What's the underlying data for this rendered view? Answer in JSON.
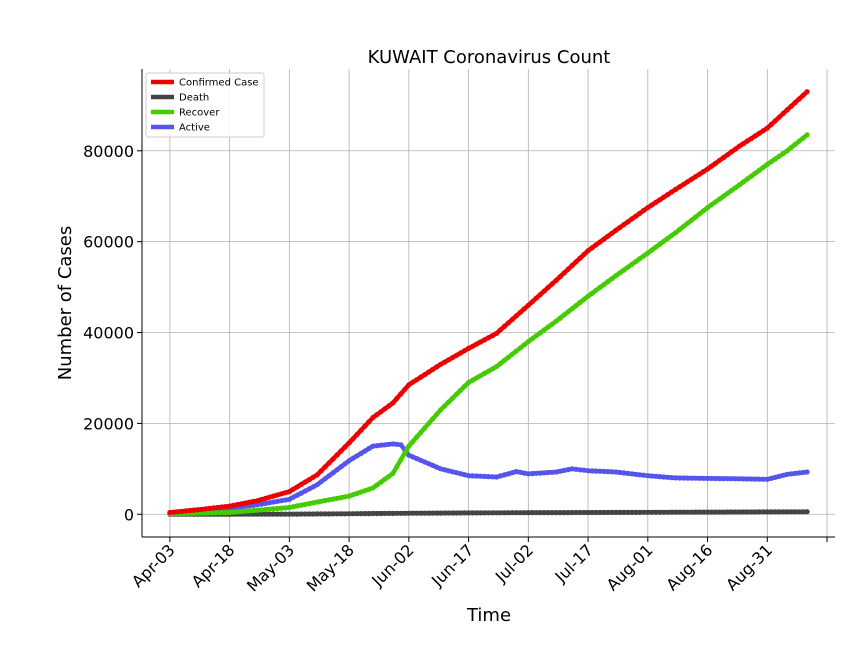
{
  "chart_data": {
    "type": "line",
    "title": "KUWAIT Coronavirus Count",
    "xlabel": "Time",
    "ylabel": "Number of Cases",
    "x_start": "2020-04-03",
    "x_end": "2020-09-10",
    "xlim": [
      "2020-03-27",
      "2020-09-17"
    ],
    "ylim": [
      -5000,
      98000
    ],
    "yticks": [
      0,
      20000,
      40000,
      60000,
      80000
    ],
    "xticks": [
      "Apr-03",
      "Apr-18",
      "May-03",
      "May-18",
      "Jun-02",
      "Jun-17",
      "Jul-02",
      "Jul-17",
      "Aug-01",
      "Aug-16",
      "Aug-31"
    ],
    "grid": true,
    "legend_position": "top-left",
    "series": [
      {
        "name": "Confirmed Case",
        "color": "#ee0000",
        "points": [
          [
            "2020-04-03",
            400
          ],
          [
            "2020-04-10",
            1000
          ],
          [
            "2020-04-18",
            1800
          ],
          [
            "2020-04-25",
            3000
          ],
          [
            "2020-05-03",
            5000
          ],
          [
            "2020-05-10",
            8700
          ],
          [
            "2020-05-18",
            15700
          ],
          [
            "2020-05-24",
            21300
          ],
          [
            "2020-05-29",
            24500
          ],
          [
            "2020-06-02",
            28500
          ],
          [
            "2020-06-10",
            33000
          ],
          [
            "2020-06-17",
            36500
          ],
          [
            "2020-06-24",
            39800
          ],
          [
            "2020-07-02",
            46000
          ],
          [
            "2020-07-09",
            51500
          ],
          [
            "2020-07-17",
            58000
          ],
          [
            "2020-07-24",
            62500
          ],
          [
            "2020-08-01",
            67500
          ],
          [
            "2020-08-08",
            71500
          ],
          [
            "2020-08-16",
            76000
          ],
          [
            "2020-08-24",
            81000
          ],
          [
            "2020-08-31",
            85000
          ],
          [
            "2020-09-05",
            89000
          ],
          [
            "2020-09-10",
            93000
          ]
        ]
      },
      {
        "name": "Death",
        "color": "#444444",
        "points": [
          [
            "2020-04-03",
            1
          ],
          [
            "2020-04-18",
            5
          ],
          [
            "2020-05-03",
            40
          ],
          [
            "2020-05-18",
            120
          ],
          [
            "2020-06-02",
            230
          ],
          [
            "2020-06-17",
            300
          ],
          [
            "2020-07-02",
            360
          ],
          [
            "2020-07-17",
            390
          ],
          [
            "2020-08-01",
            430
          ],
          [
            "2020-08-16",
            480
          ],
          [
            "2020-08-31",
            520
          ],
          [
            "2020-09-10",
            560
          ]
        ]
      },
      {
        "name": "Recover",
        "color": "#44cc00",
        "points": [
          [
            "2020-04-03",
            100
          ],
          [
            "2020-04-18",
            400
          ],
          [
            "2020-05-03",
            1500
          ],
          [
            "2020-05-10",
            2700
          ],
          [
            "2020-05-18",
            4000
          ],
          [
            "2020-05-24",
            5800
          ],
          [
            "2020-05-29",
            9000
          ],
          [
            "2020-06-02",
            15000
          ],
          [
            "2020-06-10",
            23000
          ],
          [
            "2020-06-17",
            29000
          ],
          [
            "2020-06-24",
            32500
          ],
          [
            "2020-07-02",
            38000
          ],
          [
            "2020-07-09",
            42500
          ],
          [
            "2020-07-17",
            48000
          ],
          [
            "2020-07-24",
            52500
          ],
          [
            "2020-08-01",
            57500
          ],
          [
            "2020-08-08",
            62000
          ],
          [
            "2020-08-16",
            67500
          ],
          [
            "2020-08-24",
            72500
          ],
          [
            "2020-08-31",
            77000
          ],
          [
            "2020-09-05",
            80000
          ],
          [
            "2020-09-10",
            83500
          ]
        ]
      },
      {
        "name": "Active",
        "color": "#5555ee",
        "points": [
          [
            "2020-04-03",
            300
          ],
          [
            "2020-04-10",
            700
          ],
          [
            "2020-04-18",
            1300
          ],
          [
            "2020-04-25",
            2100
          ],
          [
            "2020-05-03",
            3300
          ],
          [
            "2020-05-10",
            6500
          ],
          [
            "2020-05-18",
            11800
          ],
          [
            "2020-05-24",
            15000
          ],
          [
            "2020-05-29",
            15500
          ],
          [
            "2020-05-31",
            15300
          ],
          [
            "2020-06-02",
            13000
          ],
          [
            "2020-06-10",
            10000
          ],
          [
            "2020-06-17",
            8500
          ],
          [
            "2020-06-24",
            8200
          ],
          [
            "2020-06-29",
            9400
          ],
          [
            "2020-07-02",
            8900
          ],
          [
            "2020-07-09",
            9300
          ],
          [
            "2020-07-13",
            10000
          ],
          [
            "2020-07-17",
            9600
          ],
          [
            "2020-07-24",
            9300
          ],
          [
            "2020-08-01",
            8500
          ],
          [
            "2020-08-08",
            8000
          ],
          [
            "2020-08-16",
            7900
          ],
          [
            "2020-08-24",
            7800
          ],
          [
            "2020-08-31",
            7700
          ],
          [
            "2020-09-05",
            8800
          ],
          [
            "2020-09-10",
            9300
          ]
        ]
      }
    ]
  }
}
